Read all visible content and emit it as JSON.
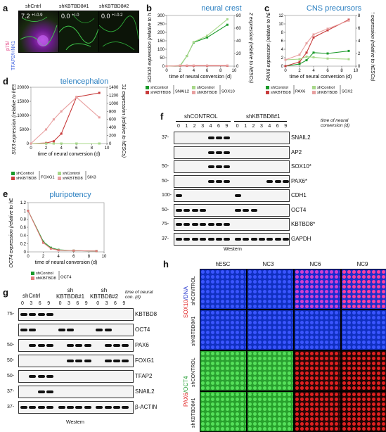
{
  "panels": {
    "a": {
      "letter": "a",
      "columns": [
        "shCntrl",
        "shKBTBD8#1",
        "shKBTBD8#2"
      ],
      "values": [
        "7.2",
        "0.0",
        "0.0"
      ],
      "errors": [
        "+/-0.9",
        "+/-0",
        "+/-0.2"
      ],
      "stain_label_1": "p75/",
      "stain_label_2": "TFAP2/HNK1"
    },
    "b": {
      "letter": "b",
      "title": "neural crest"
    },
    "c": {
      "letter": "c",
      "title": "CNS precursors"
    },
    "d": {
      "letter": "d",
      "title": "telencephalon"
    },
    "e": {
      "letter": "e",
      "title": "pluripotency"
    },
    "f": {
      "letter": "f",
      "groups": [
        "shCONTROL",
        "shKBTBD8#1"
      ],
      "timepoints": [
        "0",
        "1",
        "2",
        "3",
        "4",
        "6",
        "9",
        "0",
        "1",
        "2",
        "3",
        "4",
        "6",
        "9"
      ],
      "time_caption": "time of neural conversion (d)",
      "rows": [
        "SNAIL2",
        "AP2",
        "SOX10*",
        "PAX6*",
        "CDH1",
        "OCT4",
        "KBTBD8*",
        "GAPDH"
      ],
      "mw": [
        "37-",
        "",
        "50-",
        "50-",
        "100-",
        "50-",
        "75-",
        "37-"
      ],
      "footer": "Western"
    },
    "g": {
      "letter": "g",
      "groups": [
        "shCntrl",
        "sh KBTBD8#1",
        "sh KBTBD8#2"
      ],
      "timepoints": [
        "0",
        "3",
        "6",
        "9",
        "0",
        "3",
        "6",
        "9",
        "0",
        "3",
        "6",
        "9"
      ],
      "time_caption": "time of neural con. (d)",
      "rows": [
        "KBTBD8",
        "OCT4",
        "PAX6",
        "FOXG1",
        "TFAP2",
        "SNAIL2",
        "β-ACTIN"
      ],
      "mw": [
        "75-",
        "",
        "50-",
        "50-",
        "50-",
        "37-",
        "37-"
      ],
      "footer": "Western"
    },
    "h": {
      "letter": "h",
      "columns": [
        "hESC",
        "NC3",
        "NC6",
        "NC9"
      ],
      "rows": [
        "shCONTROL",
        "shKBTBD8#1",
        "shCONTROL",
        "shKBTBD8#1"
      ],
      "stain_top_a": "SOX10",
      "stain_top_b": "/DNA",
      "stain_bot_a": "PAX6",
      "stain_bot_b": "/OCT4"
    }
  },
  "chart_data": [
    {
      "id": "b",
      "type": "line",
      "title": "neural crest",
      "xlabel": "time of neural conversion (d)",
      "ylabel": "SOX10 expression (relative to hESCs)",
      "y2label": "SNAIL2 expression (relative to hESCs)",
      "x": [
        0,
        2,
        3,
        4,
        6,
        9
      ],
      "xlim": [
        0,
        10
      ],
      "ylim": [
        0,
        300
      ],
      "y2lim": [
        0,
        80
      ],
      "xticks": [
        0,
        2,
        4,
        6,
        8,
        10
      ],
      "yticks": [
        0,
        50,
        100,
        150,
        200,
        250,
        300
      ],
      "y2ticks": [
        0,
        20,
        40,
        60,
        80
      ],
      "series": [
        {
          "name": "shControl SNAIL2",
          "color": "#1a9a2a",
          "axis": "y",
          "values": [
            0,
            2,
            60,
            140,
            170,
            245
          ]
        },
        {
          "name": "shKBTBD8 SNAIL2",
          "color": "#c83c3c",
          "axis": "y",
          "values": [
            0,
            2,
            2,
            2,
            2,
            2
          ]
        },
        {
          "name": "shControl SOX10",
          "color": "#a8d88a",
          "axis": "y2",
          "values": [
            0,
            1,
            16,
            38,
            48,
            74
          ]
        },
        {
          "name": "shKBTBD8 SOX10",
          "color": "#e8a0a0",
          "axis": "y2",
          "values": [
            0,
            1,
            1,
            1,
            1,
            1
          ]
        }
      ],
      "legend": [
        "shControl",
        "shKBTBD8",
        "SNAIL2",
        "shControl",
        "shKBTBD8",
        "SOX10"
      ]
    },
    {
      "id": "c",
      "type": "line",
      "title": "CNS precursors",
      "xlabel": "time of neural conversion (d)",
      "ylabel": "PAX6 expression (relative to hESCs)",
      "y2label": "SOX2 expression (relative to hESCs)",
      "x": [
        0,
        2,
        3,
        4,
        6,
        9
      ],
      "xlim": [
        0,
        10
      ],
      "ylim": [
        0,
        12
      ],
      "y2lim": [
        0,
        8
      ],
      "xticks": [
        0,
        2,
        4,
        6,
        8,
        10
      ],
      "yticks": [
        0,
        2,
        4,
        6,
        8,
        10,
        12
      ],
      "y2ticks": [
        0,
        2,
        4,
        6,
        8
      ],
      "series": [
        {
          "name": "shControl PAX6",
          "color": "#1a9a2a",
          "axis": "y",
          "values": [
            0,
            0.5,
            1.4,
            3.2,
            3.0,
            3.6
          ]
        },
        {
          "name": "shKBTBD8 PAX6",
          "color": "#c83c3c",
          "axis": "y",
          "values": [
            0,
            1.0,
            3.2,
            6.8,
            8.5,
            11.0
          ]
        },
        {
          "name": "shControl SOX2",
          "color": "#a8d88a",
          "axis": "y2",
          "values": [
            1,
            1.1,
            1.5,
            1.4,
            1.2,
            1.1
          ]
        },
        {
          "name": "shKBTBD8 SOX2",
          "color": "#e8a0a0",
          "axis": "y2",
          "values": [
            1,
            1.8,
            3.6,
            5.0,
            5.9,
            7.2
          ]
        }
      ],
      "legend": [
        "shControl",
        "shKBTBD8",
        "PAX6",
        "shControl",
        "shKBTBD8",
        "SOX2"
      ]
    },
    {
      "id": "d",
      "type": "line",
      "title": "telencephalon",
      "xlabel": "time of neural conversion (d)",
      "ylabel": "SIX3 expression (relative to hESCs)",
      "y2label": "FOXG1 expression (relative to hESCs)",
      "x": [
        0,
        2,
        3,
        4,
        6,
        9
      ],
      "xlim": [
        0,
        10
      ],
      "ylim": [
        0,
        20000
      ],
      "y2lim": [
        0,
        1400
      ],
      "xticks": [
        0,
        2,
        4,
        6,
        8,
        10
      ],
      "yticks": [
        0,
        5000,
        10000,
        15000,
        20000
      ],
      "y2ticks": [
        0,
        200,
        400,
        600,
        800,
        1000,
        1200,
        1400
      ],
      "series": [
        {
          "name": "shControl FOXG1",
          "color": "#1a9a2a",
          "axis": "y",
          "values": [
            0,
            0,
            0,
            0,
            0,
            0
          ]
        },
        {
          "name": "shKBTBD8 FOXG1",
          "color": "#c83c3c",
          "axis": "y",
          "values": [
            0,
            200,
            800,
            3500,
            16500,
            18000
          ]
        },
        {
          "name": "shControl SIX3",
          "color": "#a8d88a",
          "axis": "y2",
          "values": [
            0,
            0,
            0,
            0,
            0,
            0
          ]
        },
        {
          "name": "shKBTBD8 SIX3",
          "color": "#e8a0a0",
          "axis": "y2",
          "values": [
            0,
            350,
            600,
            800,
            1150,
            650
          ]
        }
      ],
      "legend": [
        "shControl",
        "shKBTBD8",
        "FOXG1",
        "shControl",
        "shKBTBD8",
        "SIX3"
      ]
    },
    {
      "id": "e",
      "type": "line",
      "title": "pluripotency",
      "xlabel": "time of neural conversion (d)",
      "ylabel": "OCT4 expression (relative to hESCs)",
      "x": [
        0,
        2,
        3,
        4,
        6,
        9
      ],
      "xlim": [
        0,
        10
      ],
      "ylim": [
        0,
        1.2
      ],
      "xticks": [
        0,
        2,
        4,
        6,
        8,
        10
      ],
      "yticks": [
        0,
        0.2,
        0.4,
        0.6,
        0.8,
        1.0,
        1.2
      ],
      "series": [
        {
          "name": "shControl",
          "color": "#1a9a2a",
          "values": [
            1.0,
            0.25,
            0.1,
            0.05,
            0.03,
            0.02
          ]
        },
        {
          "name": "shKBTBD8",
          "color": "#e07a7a",
          "values": [
            1.0,
            0.22,
            0.08,
            0.04,
            0.03,
            0.02
          ]
        }
      ],
      "legend": [
        "shControl",
        "shKBTBD8",
        "OCT4"
      ]
    }
  ]
}
